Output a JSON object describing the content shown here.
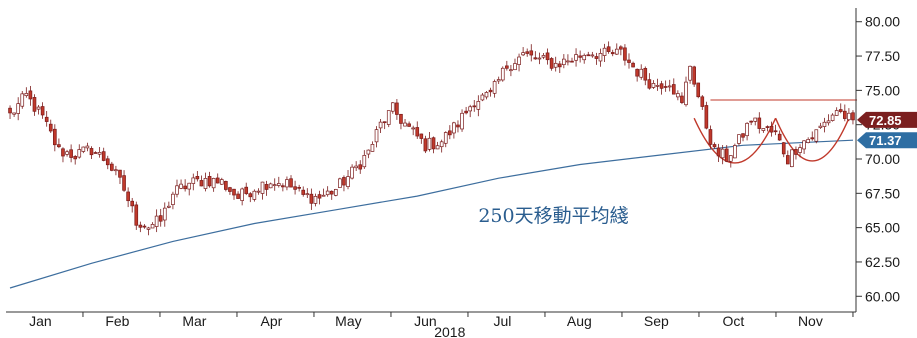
{
  "chart_data": {
    "type": "candlestick",
    "title": "",
    "xlabel": "2018",
    "ylabel": "",
    "ylim": [
      59.0,
      81.0
    ],
    "y_ticks": [
      "60.00",
      "62.50",
      "65.00",
      "67.50",
      "70.00",
      "72.50",
      "75.00",
      "77.50",
      "80.00"
    ],
    "y_axis_side": "right",
    "x_ticks": [
      "Jan",
      "Feb",
      "Mar",
      "Apr",
      "May",
      "Jun",
      "Jul",
      "Aug",
      "Sep",
      "Oct",
      "Nov"
    ],
    "x_year_label": "2018",
    "grid": false,
    "candle_colors": {
      "up": "#ffffff",
      "down": "#c0392b",
      "outline": "#7a1a1a"
    },
    "price_keypoints": [
      [
        0.0,
        73.2
      ],
      [
        4,
        74.6
      ],
      [
        8,
        73.0
      ],
      [
        12,
        70.6
      ],
      [
        16,
        70.3
      ],
      [
        20,
        70.7
      ],
      [
        24,
        69.8
      ],
      [
        28,
        67.8
      ],
      [
        31,
        65.5
      ],
      [
        34,
        65.1
      ],
      [
        37,
        65.5
      ],
      [
        40,
        67.5
      ],
      [
        44,
        68.2
      ],
      [
        48,
        68.5
      ],
      [
        52,
        68.3
      ],
      [
        56,
        67.2
      ],
      [
        60,
        67.9
      ],
      [
        64,
        68.4
      ],
      [
        68,
        68.2
      ],
      [
        72,
        67.3
      ],
      [
        76,
        67.2
      ],
      [
        80,
        67.8
      ],
      [
        84,
        69.0
      ],
      [
        88,
        70.5
      ],
      [
        91,
        72.5
      ],
      [
        94,
        73.6
      ],
      [
        98,
        72.2
      ],
      [
        102,
        71.0
      ],
      [
        106,
        71.3
      ],
      [
        110,
        72.6
      ],
      [
        114,
        74.3
      ],
      [
        118,
        74.6
      ],
      [
        122,
        76.8
      ],
      [
        126,
        77.6
      ],
      [
        130,
        77.2
      ],
      [
        134,
        76.9
      ],
      [
        138,
        77.3
      ],
      [
        142,
        77.8
      ],
      [
        146,
        77.6
      ],
      [
        150,
        77.7
      ],
      [
        154,
        76.4
      ],
      [
        158,
        75.4
      ],
      [
        162,
        75.7
      ],
      [
        165,
        73.9
      ],
      [
        167,
        76.9
      ],
      [
        170,
        73.4
      ],
      [
        173,
        70.5
      ],
      [
        176,
        70.1
      ],
      [
        179,
        71.3
      ],
      [
        182,
        72.9
      ],
      [
        185,
        72.2
      ],
      [
        188,
        71.8
      ],
      [
        191,
        70.0
      ],
      [
        194,
        71.2
      ],
      [
        197,
        71.6
      ],
      [
        200,
        72.6
      ],
      [
        203,
        73.6
      ],
      [
        206,
        72.9
      ]
    ],
    "ma_series": {
      "name": "250天移動平均綫",
      "values": [
        [
          0,
          60.6
        ],
        [
          20,
          62.4
        ],
        [
          40,
          64.0
        ],
        [
          60,
          65.3
        ],
        [
          80,
          66.3
        ],
        [
          100,
          67.3
        ],
        [
          120,
          68.6
        ],
        [
          140,
          69.6
        ],
        [
          160,
          70.3
        ],
        [
          180,
          71.0
        ],
        [
          207,
          71.37
        ]
      ]
    },
    "last_price": {
      "value": 72.85,
      "label": "72.85",
      "color": "#7b1f1f"
    },
    "ma_last": {
      "value": 71.37,
      "label": "71.37",
      "color": "#2e6ea3"
    },
    "resistance_line": {
      "value": 74.3,
      "from": 172,
      "to": 208,
      "color": "#c0392b"
    },
    "double_bottom_arcs": [
      {
        "from": 168,
        "to": 188,
        "bottom": 68.7
      },
      {
        "from": 188,
        "to": 206,
        "bottom": 68.9
      }
    ],
    "annotation": {
      "text": "250天移動平均綫",
      "x": 115,
      "y": 65.4,
      "color": "#2a5d8f"
    },
    "n_candles": 208
  }
}
